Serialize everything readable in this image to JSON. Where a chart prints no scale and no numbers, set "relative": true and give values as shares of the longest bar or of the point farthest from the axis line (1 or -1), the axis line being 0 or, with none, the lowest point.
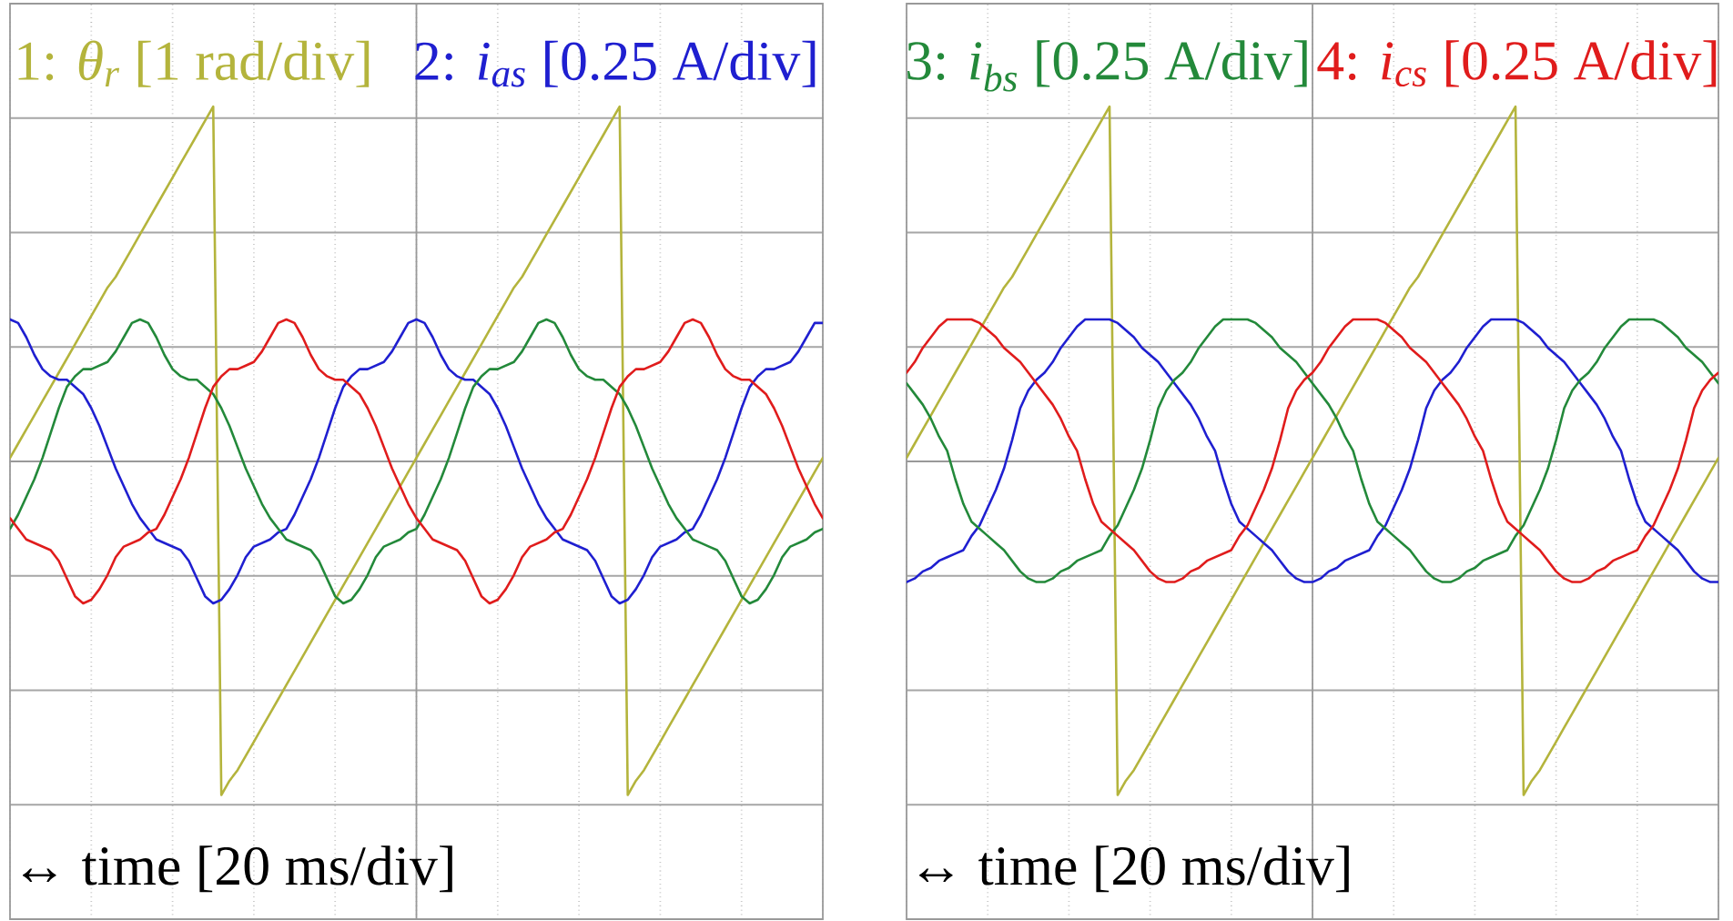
{
  "chart_data": [
    {
      "type": "line",
      "relative": true,
      "grid": true,
      "xlabel": "↔ time [20 ms/div]",
      "categories": [
        null,
        null,
        null,
        null,
        null,
        null,
        null,
        null,
        null,
        null,
        null,
        null,
        null,
        null,
        null,
        null,
        null,
        null,
        null,
        null,
        null,
        null,
        null,
        null,
        null,
        null,
        null,
        null,
        null,
        null,
        null,
        null,
        null,
        null,
        null,
        null,
        null,
        null,
        null,
        null,
        null,
        null,
        null,
        null,
        null,
        null,
        null,
        null,
        null,
        null,
        null,
        null,
        null,
        null,
        null,
        null,
        null,
        null,
        null,
        null,
        null,
        null,
        null,
        null,
        null,
        null,
        null,
        null,
        null,
        null,
        null,
        null,
        null,
        null,
        null,
        null,
        null,
        null,
        null,
        null,
        null,
        null,
        null,
        null,
        null,
        null,
        null,
        null,
        null,
        null,
        null,
        null,
        null,
        null,
        null,
        null,
        null,
        null,
        null,
        null,
        null
      ],
      "series": [
        {
          "name": "1: *θ$_{r}$* [1 rad/div]",
          "color": "#b4b43c",
          "values": [
            0.01,
            0.05,
            0.09,
            0.13,
            0.17,
            0.21,
            0.25,
            0.29,
            0.33,
            0.37,
            0.41,
            0.45,
            0.49,
            0.52,
            0.56,
            0.6,
            0.64,
            0.68,
            0.72,
            0.76,
            0.8,
            0.84,
            0.88,
            0.92,
            0.96,
            1.0,
            -0.94,
            -0.9,
            -0.87,
            -0.83,
            -0.79,
            -0.75,
            -0.71,
            -0.67,
            -0.63,
            -0.59,
            -0.55,
            -0.51,
            -0.47,
            -0.43,
            -0.39,
            -0.35,
            -0.31,
            -0.27,
            -0.23,
            -0.19,
            -0.15,
            -0.11,
            -0.07,
            -0.03,
            0.01,
            0.05,
            0.09,
            0.13,
            0.17,
            0.21,
            0.25,
            0.29,
            0.33,
            0.37,
            0.41,
            0.45,
            0.49,
            0.52,
            0.56,
            0.6,
            0.64,
            0.68,
            0.72,
            0.76,
            0.8,
            0.84,
            0.88,
            0.92,
            0.96,
            1.0,
            -0.94,
            -0.9,
            -0.87,
            -0.83,
            -0.79,
            -0.75,
            -0.71,
            -0.67,
            -0.63,
            -0.59,
            -0.55,
            -0.51,
            -0.47,
            -0.43,
            -0.39,
            -0.35,
            -0.31,
            -0.27,
            -0.23,
            -0.19,
            -0.15,
            -0.11,
            -0.07,
            -0.03,
            0.01
          ]
        },
        {
          "name": "2: *i$_{as}$* [0.25 A/div]",
          "color": "#1f1fd0",
          "values": [
            0.4,
            0.39,
            0.35,
            0.3,
            0.26,
            0.24,
            0.23,
            0.23,
            0.21,
            0.19,
            0.15,
            0.1,
            0.04,
            -0.02,
            -0.07,
            -0.12,
            -0.16,
            -0.19,
            -0.22,
            -0.23,
            -0.24,
            -0.25,
            -0.28,
            -0.33,
            -0.38,
            -0.4,
            -0.39,
            -0.36,
            -0.32,
            -0.27,
            -0.24,
            -0.23,
            -0.22,
            -0.2,
            -0.19,
            -0.15,
            -0.1,
            -0.05,
            0.01,
            0.08,
            0.15,
            0.21,
            0.24,
            0.26,
            0.26,
            0.27,
            0.28,
            0.31,
            0.35,
            0.39,
            0.4,
            0.39,
            0.35,
            0.3,
            0.26,
            0.24,
            0.23,
            0.23,
            0.21,
            0.19,
            0.15,
            0.1,
            0.04,
            -0.02,
            -0.07,
            -0.12,
            -0.16,
            -0.19,
            -0.22,
            -0.23,
            -0.24,
            -0.25,
            -0.28,
            -0.33,
            -0.38,
            -0.4,
            -0.39,
            -0.36,
            -0.32,
            -0.27,
            -0.24,
            -0.23,
            -0.22,
            -0.2,
            -0.19,
            -0.15,
            -0.1,
            -0.05,
            0.01,
            0.08,
            0.15,
            0.21,
            0.24,
            0.26,
            0.26,
            0.27,
            0.28,
            0.31,
            0.35,
            0.39,
            0.39
          ]
        },
        {
          "color": "#23893a",
          "values": [
            -0.19,
            -0.15,
            -0.1,
            -0.05,
            0.01,
            0.08,
            0.15,
            0.21,
            0.24,
            0.26,
            0.26,
            0.27,
            0.28,
            0.31,
            0.35,
            0.39,
            0.4,
            0.39,
            0.35,
            0.3,
            0.26,
            0.24,
            0.23,
            0.23,
            0.21,
            0.19,
            0.15,
            0.1,
            0.04,
            -0.02,
            -0.07,
            -0.12,
            -0.16,
            -0.19,
            -0.22,
            -0.23,
            -0.24,
            -0.25,
            -0.28,
            -0.33,
            -0.38,
            -0.4,
            -0.39,
            -0.36,
            -0.32,
            -0.27,
            -0.24,
            -0.23,
            -0.22,
            -0.2,
            -0.19,
            -0.15,
            -0.1,
            -0.05,
            0.01,
            0.08,
            0.15,
            0.21,
            0.24,
            0.26,
            0.26,
            0.27,
            0.28,
            0.31,
            0.35,
            0.39,
            0.4,
            0.39,
            0.35,
            0.3,
            0.26,
            0.24,
            0.23,
            0.23,
            0.21,
            0.19,
            0.15,
            0.1,
            0.04,
            -0.02,
            -0.07,
            -0.12,
            -0.16,
            -0.19,
            -0.22,
            -0.23,
            -0.24,
            -0.25,
            -0.28,
            -0.33,
            -0.38,
            -0.4,
            -0.39,
            -0.36,
            -0.32,
            -0.27,
            -0.24,
            -0.23,
            -0.22,
            -0.2,
            -0.19
          ]
        },
        {
          "color": "#e01c1c",
          "values": [
            -0.16,
            -0.19,
            -0.22,
            -0.23,
            -0.24,
            -0.25,
            -0.28,
            -0.33,
            -0.38,
            -0.4,
            -0.39,
            -0.36,
            -0.32,
            -0.27,
            -0.24,
            -0.23,
            -0.22,
            -0.2,
            -0.19,
            -0.15,
            -0.1,
            -0.05,
            0.01,
            0.08,
            0.15,
            0.21,
            0.24,
            0.26,
            0.26,
            0.27,
            0.28,
            0.31,
            0.35,
            0.39,
            0.4,
            0.39,
            0.35,
            0.3,
            0.26,
            0.24,
            0.23,
            0.23,
            0.21,
            0.19,
            0.15,
            0.1,
            0.04,
            -0.02,
            -0.07,
            -0.12,
            -0.16,
            -0.19,
            -0.22,
            -0.23,
            -0.24,
            -0.25,
            -0.28,
            -0.33,
            -0.38,
            -0.4,
            -0.39,
            -0.36,
            -0.32,
            -0.27,
            -0.24,
            -0.23,
            -0.22,
            -0.2,
            -0.19,
            -0.15,
            -0.1,
            -0.05,
            0.01,
            0.08,
            0.15,
            0.21,
            0.24,
            0.26,
            0.26,
            0.27,
            0.28,
            0.31,
            0.35,
            0.39,
            0.4,
            0.39,
            0.35,
            0.3,
            0.26,
            0.24,
            0.23,
            0.23,
            0.21,
            0.19,
            0.15,
            0.1,
            0.04,
            -0.02,
            -0.07,
            -0.12,
            -0.16
          ]
        }
      ]
    },
    {
      "type": "line",
      "relative": true,
      "grid": true,
      "xlabel": "↔ time [20 ms/div]",
      "categories": [
        null,
        null,
        null,
        null,
        null,
        null,
        null,
        null,
        null,
        null,
        null,
        null,
        null,
        null,
        null,
        null,
        null,
        null,
        null,
        null,
        null,
        null,
        null,
        null,
        null,
        null,
        null,
        null,
        null,
        null,
        null,
        null,
        null,
        null,
        null,
        null,
        null,
        null,
        null,
        null,
        null,
        null,
        null,
        null,
        null,
        null,
        null,
        null,
        null,
        null,
        null,
        null,
        null,
        null,
        null,
        null,
        null,
        null,
        null,
        null,
        null,
        null,
        null,
        null,
        null,
        null,
        null,
        null,
        null,
        null,
        null,
        null,
        null,
        null,
        null,
        null,
        null,
        null,
        null,
        null,
        null,
        null,
        null,
        null,
        null,
        null,
        null,
        null,
        null,
        null,
        null,
        null,
        null,
        null,
        null,
        null,
        null,
        null,
        null,
        null,
        null
      ],
      "series": [
        {
          "color": "#b4b43c",
          "values": [
            0.01,
            0.05,
            0.09,
            0.13,
            0.17,
            0.21,
            0.25,
            0.29,
            0.33,
            0.37,
            0.41,
            0.45,
            0.49,
            0.52,
            0.56,
            0.6,
            0.64,
            0.68,
            0.72,
            0.76,
            0.8,
            0.84,
            0.88,
            0.92,
            0.96,
            1.0,
            -0.94,
            -0.9,
            -0.87,
            -0.83,
            -0.79,
            -0.75,
            -0.71,
            -0.67,
            -0.63,
            -0.59,
            -0.55,
            -0.51,
            -0.47,
            -0.43,
            -0.39,
            -0.35,
            -0.31,
            -0.27,
            -0.23,
            -0.19,
            -0.15,
            -0.11,
            -0.07,
            -0.03,
            0.01,
            0.05,
            0.09,
            0.13,
            0.17,
            0.21,
            0.25,
            0.29,
            0.33,
            0.37,
            0.41,
            0.45,
            0.49,
            0.52,
            0.56,
            0.6,
            0.64,
            0.68,
            0.72,
            0.76,
            0.8,
            0.84,
            0.88,
            0.92,
            0.96,
            1.0,
            -0.94,
            -0.9,
            -0.87,
            -0.83,
            -0.79,
            -0.75,
            -0.71,
            -0.67,
            -0.63,
            -0.59,
            -0.55,
            -0.51,
            -0.47,
            -0.43,
            -0.39,
            -0.35,
            -0.31,
            -0.27,
            -0.23,
            -0.19,
            -0.15,
            -0.11,
            -0.07,
            -0.03,
            0.01
          ]
        },
        {
          "color": "#1f1fd0",
          "values": [
            -0.34,
            -0.33,
            -0.31,
            -0.3,
            -0.28,
            -0.27,
            -0.26,
            -0.25,
            -0.21,
            -0.18,
            -0.13,
            -0.08,
            -0.02,
            0.06,
            0.15,
            0.2,
            0.23,
            0.25,
            0.28,
            0.32,
            0.35,
            0.38,
            0.4,
            0.4,
            0.4,
            0.4,
            0.39,
            0.37,
            0.35,
            0.32,
            0.3,
            0.28,
            0.25,
            0.22,
            0.19,
            0.16,
            0.12,
            0.07,
            0.03,
            -0.05,
            -0.12,
            -0.17,
            -0.19,
            -0.21,
            -0.23,
            -0.25,
            -0.28,
            -0.31,
            -0.33,
            -0.34,
            -0.34,
            -0.33,
            -0.31,
            -0.3,
            -0.28,
            -0.27,
            -0.26,
            -0.25,
            -0.21,
            -0.18,
            -0.13,
            -0.08,
            -0.02,
            0.06,
            0.15,
            0.2,
            0.23,
            0.25,
            0.28,
            0.32,
            0.35,
            0.38,
            0.4,
            0.4,
            0.4,
            0.4,
            0.39,
            0.37,
            0.35,
            0.32,
            0.3,
            0.28,
            0.25,
            0.22,
            0.19,
            0.16,
            0.12,
            0.07,
            0.03,
            -0.05,
            -0.12,
            -0.17,
            -0.19,
            -0.21,
            -0.23,
            -0.25,
            -0.28,
            -0.31,
            -0.33,
            -0.34,
            -0.34
          ]
        },
        {
          "name": "3: *i$_{bs}$* [0.25 A/div]",
          "color": "#23893a",
          "values": [
            0.22,
            0.19,
            0.16,
            0.12,
            0.07,
            0.03,
            -0.05,
            -0.12,
            -0.17,
            -0.19,
            -0.21,
            -0.23,
            -0.25,
            -0.28,
            -0.31,
            -0.33,
            -0.34,
            -0.34,
            -0.33,
            -0.31,
            -0.3,
            -0.28,
            -0.27,
            -0.26,
            -0.25,
            -0.21,
            -0.18,
            -0.13,
            -0.08,
            -0.02,
            0.06,
            0.15,
            0.2,
            0.23,
            0.25,
            0.28,
            0.32,
            0.35,
            0.38,
            0.4,
            0.4,
            0.4,
            0.4,
            0.39,
            0.37,
            0.35,
            0.32,
            0.3,
            0.28,
            0.25,
            0.22,
            0.19,
            0.16,
            0.12,
            0.07,
            0.03,
            -0.05,
            -0.12,
            -0.17,
            -0.19,
            -0.21,
            -0.23,
            -0.25,
            -0.28,
            -0.31,
            -0.33,
            -0.34,
            -0.34,
            -0.33,
            -0.31,
            -0.3,
            -0.28,
            -0.27,
            -0.26,
            -0.25,
            -0.21,
            -0.18,
            -0.13,
            -0.08,
            -0.02,
            0.06,
            0.15,
            0.2,
            0.23,
            0.25,
            0.28,
            0.32,
            0.35,
            0.38,
            0.4,
            0.4,
            0.4,
            0.4,
            0.39,
            0.37,
            0.35,
            0.32,
            0.3,
            0.28,
            0.25,
            0.22
          ]
        },
        {
          "name": "4: *i$_{cs}$* [0.25 A/div]",
          "color": "#e01c1c",
          "values": [
            0.25,
            0.28,
            0.32,
            0.35,
            0.38,
            0.4,
            0.4,
            0.4,
            0.4,
            0.39,
            0.37,
            0.35,
            0.32,
            0.3,
            0.28,
            0.25,
            0.22,
            0.19,
            0.16,
            0.12,
            0.07,
            0.03,
            -0.05,
            -0.12,
            -0.17,
            -0.19,
            -0.21,
            -0.23,
            -0.25,
            -0.28,
            -0.31,
            -0.33,
            -0.34,
            -0.34,
            -0.33,
            -0.31,
            -0.3,
            -0.28,
            -0.27,
            -0.26,
            -0.25,
            -0.21,
            -0.18,
            -0.13,
            -0.08,
            -0.02,
            0.06,
            0.15,
            0.2,
            0.23,
            0.25,
            0.28,
            0.32,
            0.35,
            0.38,
            0.4,
            0.4,
            0.4,
            0.4,
            0.39,
            0.37,
            0.35,
            0.32,
            0.3,
            0.28,
            0.25,
            0.22,
            0.19,
            0.16,
            0.12,
            0.07,
            0.03,
            -0.05,
            -0.12,
            -0.17,
            -0.19,
            -0.21,
            -0.23,
            -0.25,
            -0.28,
            -0.31,
            -0.33,
            -0.34,
            -0.34,
            -0.33,
            -0.31,
            -0.3,
            -0.28,
            -0.27,
            -0.26,
            -0.25,
            -0.21,
            -0.18,
            -0.13,
            -0.08,
            -0.02,
            0.06,
            0.15,
            0.2,
            0.23,
            0.25
          ]
        }
      ]
    }
  ]
}
